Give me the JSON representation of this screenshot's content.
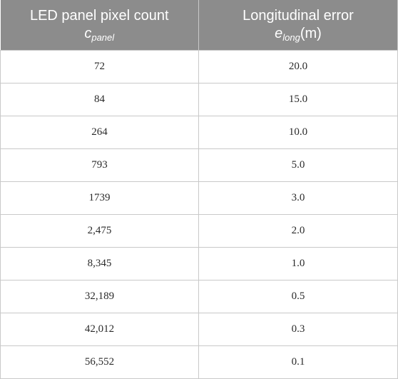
{
  "table": {
    "header": {
      "col1_title": "LED panel pixel count",
      "col1_symbol": "c",
      "col1_subscript": "panel",
      "col2_title": "Longitudinal error",
      "col2_symbol": "e",
      "col2_subscript": "long",
      "col2_unit": "(m)"
    },
    "rows": [
      {
        "pixels": "72",
        "error": "20.0"
      },
      {
        "pixels": "84",
        "error": "15.0"
      },
      {
        "pixels": "264",
        "error": "10.0"
      },
      {
        "pixels": "793",
        "error": "5.0"
      },
      {
        "pixels": "1739",
        "error": "3.0"
      },
      {
        "pixels": "2,475",
        "error": "2.0"
      },
      {
        "pixels": "8,345",
        "error": "1.0"
      },
      {
        "pixels": "32,189",
        "error": "0.5"
      },
      {
        "pixels": "42,012",
        "error": "0.3"
      },
      {
        "pixels": "56,552",
        "error": "0.1"
      }
    ]
  },
  "colors": {
    "header_bg": "#8c8c8c",
    "header_text": "#ffffff",
    "grid": "#c9c9c9",
    "cell_text": "#2a2a2a"
  }
}
